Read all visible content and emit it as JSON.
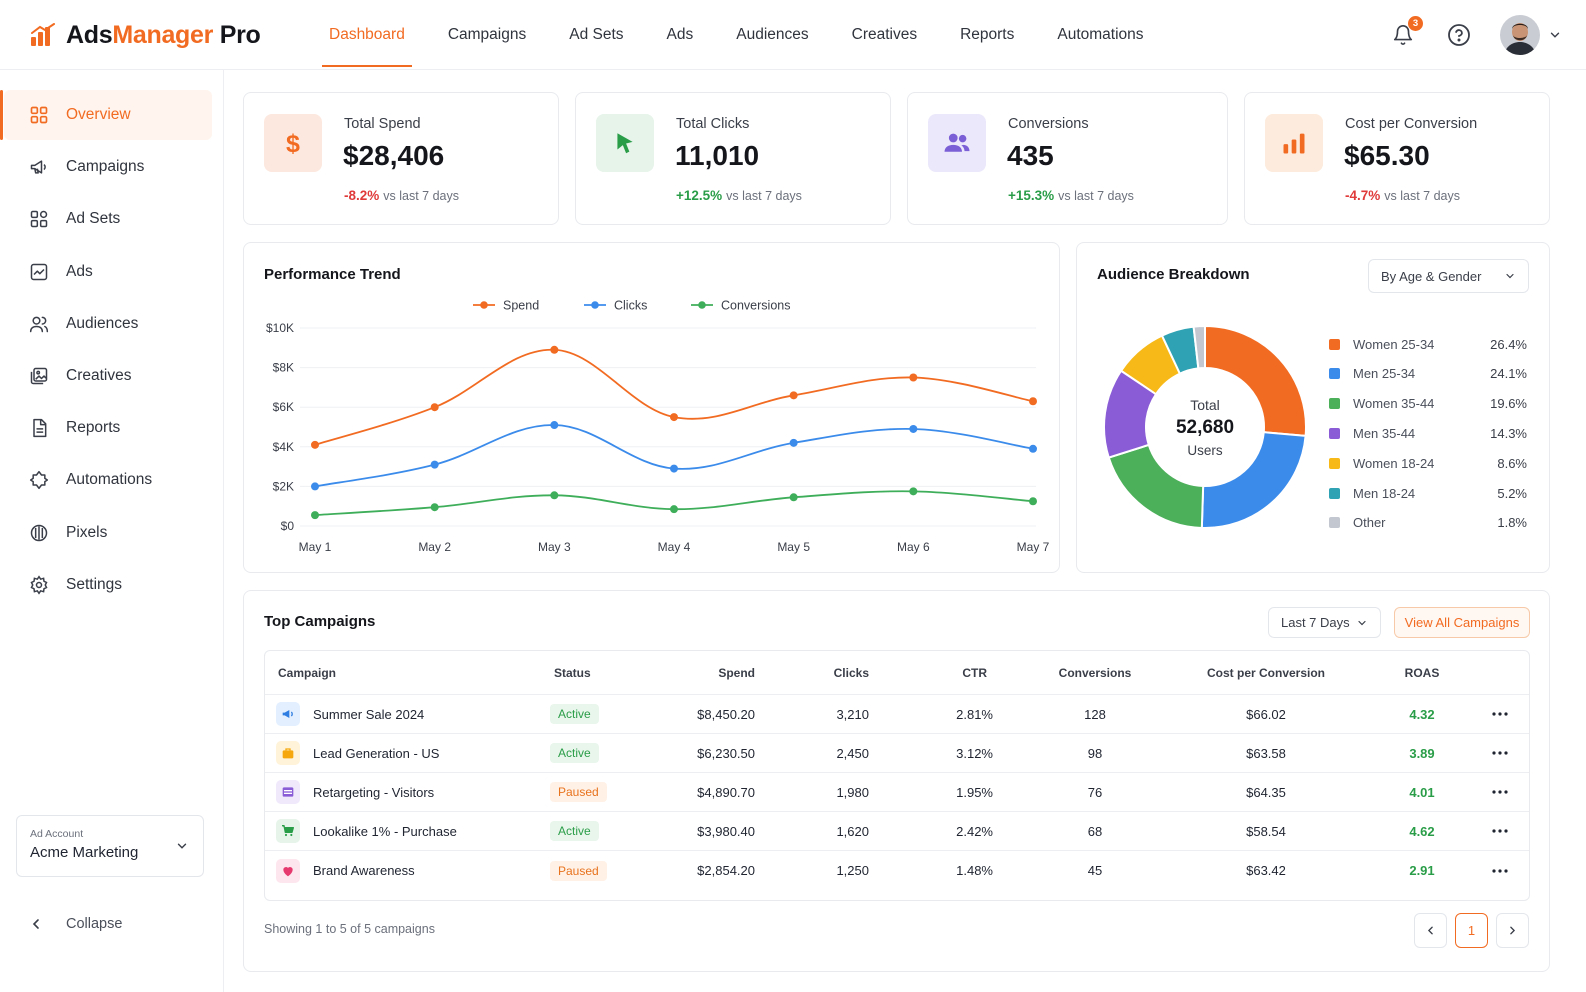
{
  "brand": {
    "part1": "Ads",
    "part2": "Manager",
    "part3": " Pro",
    "accent": "#f26b22"
  },
  "nav": [
    {
      "label": "Dashboard",
      "active": true
    },
    {
      "label": "Campaigns"
    },
    {
      "label": "Ad Sets"
    },
    {
      "label": "Ads"
    },
    {
      "label": "Audiences"
    },
    {
      "label": "Creatives"
    },
    {
      "label": "Reports"
    },
    {
      "label": "Automations"
    }
  ],
  "topbar": {
    "notification_count": "3",
    "icons": [
      "bell-icon",
      "help-icon",
      "avatar",
      "chevron-down-icon"
    ]
  },
  "sidebar": {
    "items": [
      {
        "label": "Overview",
        "icon": "grid-icon",
        "active": true
      },
      {
        "label": "Campaigns",
        "icon": "megaphone-icon"
      },
      {
        "label": "Ad Sets",
        "icon": "adsets-icon"
      },
      {
        "label": "Ads",
        "icon": "ad-image-icon"
      },
      {
        "label": "Audiences",
        "icon": "users-icon"
      },
      {
        "label": "Creatives",
        "icon": "gallery-icon"
      },
      {
        "label": "Reports",
        "icon": "document-icon"
      },
      {
        "label": "Automations",
        "icon": "automation-icon"
      },
      {
        "label": "Pixels",
        "icon": "pixel-icon"
      },
      {
        "label": "Settings",
        "icon": "gear-icon"
      }
    ],
    "account": {
      "label": "Ad Account",
      "name": "Acme Marketing"
    },
    "collapse_label": "Collapse"
  },
  "kpis": [
    {
      "label": "Total Spend",
      "value": "$28,406",
      "delta": "-8.2%",
      "vs": "vs last 7 days",
      "trend": "negative",
      "icon": "dollar-icon",
      "bg": "#fde8df",
      "color": "#f26b22"
    },
    {
      "label": "Total Clicks",
      "value": "11,010",
      "delta": "+12.5%",
      "vs": "vs last 7 days",
      "trend": "positive",
      "icon": "cursor-icon",
      "bg": "#e6f4ea",
      "color": "#2a9d48"
    },
    {
      "label": "Conversions",
      "value": "435",
      "delta": "+15.3%",
      "vs": "vs last 7 days",
      "trend": "positive",
      "icon": "users-icon",
      "bg": "#ece8fb",
      "color": "#7b5fd6"
    },
    {
      "label": "Cost per Conversion",
      "value": "$65.30",
      "delta": "-4.7%",
      "vs": "vs last 7 days",
      "trend": "negative",
      "icon": "bar-chart-icon",
      "bg": "#fdebdd",
      "color": "#f26b22"
    }
  ],
  "performance": {
    "title": "Performance Trend"
  },
  "audience": {
    "title": "Audience Breakdown",
    "select": "By Age & Gender",
    "center_label": "Total",
    "center_value": "52,680",
    "center_unit": "Users"
  },
  "chart_data": [
    {
      "type": "line",
      "title": "Performance Trend",
      "x": [
        "May 1",
        "May 2",
        "May 3",
        "May 4",
        "May 5",
        "May 6",
        "May 7"
      ],
      "ylim": [
        0,
        10000
      ],
      "y_ticks": [
        "$0",
        "$2K",
        "$4K",
        "$6K",
        "$8K",
        "$10K"
      ],
      "grid": true,
      "legend": "top",
      "series": [
        {
          "name": "Spend",
          "color": "#f26b22",
          "values": [
            4100,
            6000,
            8900,
            5500,
            6600,
            7500,
            6300
          ]
        },
        {
          "name": "Clicks",
          "color": "#3b8beb",
          "values": [
            2000,
            3100,
            5100,
            2900,
            4200,
            4900,
            3900
          ]
        },
        {
          "name": "Conversions",
          "color": "#3fae5a",
          "values": [
            550,
            950,
            1550,
            850,
            1450,
            1750,
            1250
          ]
        }
      ]
    },
    {
      "type": "pie",
      "title": "Audience Breakdown",
      "legend": "right",
      "slices": [
        {
          "label": "Women 25-34",
          "value": 26.4,
          "pct": "26.4%",
          "color": "#f26b22"
        },
        {
          "label": "Men 25-34",
          "value": 24.1,
          "pct": "24.1%",
          "color": "#3b8beb"
        },
        {
          "label": "Women 35-44",
          "value": 19.6,
          "pct": "19.6%",
          "color": "#4caf5a"
        },
        {
          "label": "Men 35-44",
          "value": 14.3,
          "pct": "14.3%",
          "color": "#8a5cd6"
        },
        {
          "label": "Women 18-24",
          "value": 8.6,
          "pct": "8.6%",
          "color": "#f7b918"
        },
        {
          "label": "Men 18-24",
          "value": 5.2,
          "pct": "5.2%",
          "color": "#2fa3b3"
        },
        {
          "label": "Other",
          "value": 1.8,
          "pct": "1.8%",
          "color": "#c3c8d0"
        }
      ]
    }
  ],
  "campaigns": {
    "title": "Top Campaigns",
    "range_select": "Last 7 Days",
    "view_all": "View All Campaigns",
    "columns": [
      "Campaign",
      "Status",
      "Spend",
      "Clicks",
      "CTR",
      "Conversions",
      "Cost per Conversion",
      "ROAS"
    ],
    "rows": [
      {
        "name": "Summer Sale 2024",
        "status": "Active",
        "spend": "$8,450.20",
        "clicks": "3,210",
        "ctr": "2.81%",
        "conversions": "128",
        "cpc": "$66.02",
        "roas": "4.32",
        "icon": "megaphone-icon",
        "icon_bg": "#e3efff",
        "icon_color": "#2f7de1"
      },
      {
        "name": "Lead Generation - US",
        "status": "Active",
        "spend": "$6,230.50",
        "clicks": "2,450",
        "ctr": "3.12%",
        "conversions": "98",
        "cpc": "$63.58",
        "roas": "3.89",
        "icon": "briefcase-icon",
        "icon_bg": "#fff3d9",
        "icon_color": "#f5a70c"
      },
      {
        "name": "Retargeting - Visitors",
        "status": "Paused",
        "spend": "$4,890.70",
        "clicks": "1,980",
        "ctr": "1.95%",
        "conversions": "76",
        "cpc": "$64.35",
        "roas": "4.01",
        "icon": "browser-window-icon",
        "icon_bg": "#efe9fb",
        "icon_color": "#8a5cd6"
      },
      {
        "name": "Lookalike 1% - Purchase",
        "status": "Active",
        "spend": "$3,980.40",
        "clicks": "1,620",
        "ctr": "2.42%",
        "conversions": "68",
        "cpc": "$58.54",
        "roas": "4.62",
        "icon": "cart-icon",
        "icon_bg": "#e6f4ea",
        "icon_color": "#2a9d48"
      },
      {
        "name": "Brand Awareness",
        "status": "Paused",
        "spend": "$2,854.20",
        "clicks": "1,250",
        "ctr": "1.48%",
        "conversions": "45",
        "cpc": "$63.42",
        "roas": "2.91",
        "icon": "heart-icon",
        "icon_bg": "#fde6ee",
        "icon_color": "#e63a6e"
      }
    ],
    "footer": "Showing 1 to 5 of 5 campaigns",
    "current_page": "1"
  }
}
